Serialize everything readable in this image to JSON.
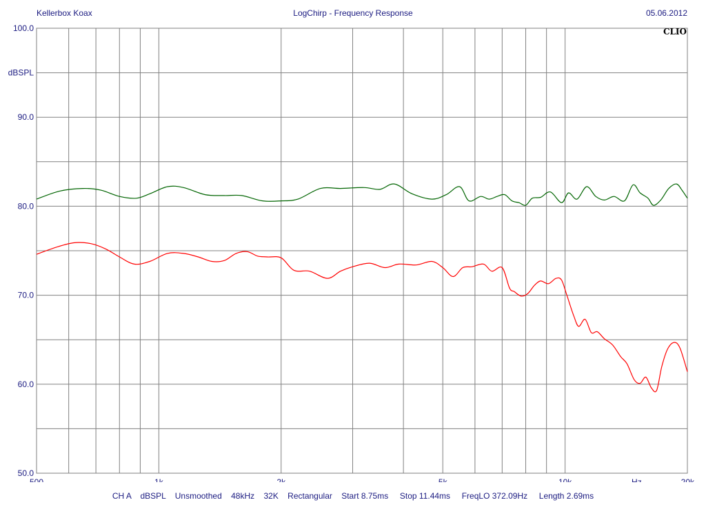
{
  "header": {
    "left": "Kellerbox Koax",
    "center": "LogChirp - Frequency Response",
    "right": "05.06.2012"
  },
  "brand": "CLIO",
  "footer": {
    "text": "CH A    dBSPL    Unsmoothed    48kHz    32K    Rectangular    Start 8.75ms     Stop 11.44ms     FreqLO 372.09Hz     Length 2.69ms"
  },
  "colors": {
    "grid": "#808080",
    "text": "#1a1a80",
    "green": "#006400",
    "red": "#ff0000"
  },
  "chart_data": {
    "type": "line",
    "title": "LogChirp - Frequency Response",
    "xlabel": "Hz",
    "ylabel": "dBSPL",
    "xscale": "log",
    "xlim": [
      500,
      20000
    ],
    "ylim": [
      50,
      100
    ],
    "grid": true,
    "x_ticks": [
      {
        "value": 500,
        "label": "500"
      },
      {
        "value": 1000,
        "label": "1k"
      },
      {
        "value": 2000,
        "label": "2k"
      },
      {
        "value": 5000,
        "label": "5k"
      },
      {
        "value": 10000,
        "label": "10k"
      },
      {
        "value": 20000,
        "label": "20k"
      }
    ],
    "y_ticks": [
      {
        "value": 50,
        "label": "50.0"
      },
      {
        "value": 60,
        "label": "60.0"
      },
      {
        "value": 70,
        "label": "70.0"
      },
      {
        "value": 80,
        "label": "80.0"
      },
      {
        "value": 90,
        "label": "90.0"
      },
      {
        "value": 100,
        "label": "100.0"
      }
    ],
    "series": [
      {
        "color": "#006400",
        "x": [
          500,
          570,
          650,
          720,
          800,
          880,
          950,
          1050,
          1150,
          1300,
          1450,
          1600,
          1800,
          2000,
          2200,
          2500,
          2800,
          3200,
          3500,
          3800,
          4200,
          4700,
          5100,
          5500,
          5800,
          6200,
          6500,
          6800,
          7100,
          7400,
          7700,
          8000,
          8300,
          8700,
          9200,
          9800,
          10200,
          10700,
          11300,
          11900,
          12500,
          13200,
          14000,
          14700,
          15300,
          16000,
          16500,
          17200,
          18000,
          18800,
          19400,
          20000
        ],
        "y": [
          80.8,
          81.7,
          82.0,
          81.8,
          81.1,
          80.9,
          81.4,
          82.2,
          82.1,
          81.3,
          81.2,
          81.2,
          80.6,
          80.6,
          80.8,
          82.0,
          82.0,
          82.1,
          81.9,
          82.5,
          81.4,
          80.8,
          81.3,
          82.2,
          80.6,
          81.1,
          80.8,
          81.1,
          81.3,
          80.6,
          80.4,
          80.1,
          80.9,
          81.0,
          81.6,
          80.4,
          81.5,
          80.8,
          82.2,
          81.1,
          80.7,
          81.1,
          80.6,
          82.4,
          81.5,
          80.9,
          80.1,
          80.7,
          82.0,
          82.5,
          81.8,
          80.9
        ]
      },
      {
        "color": "#ff0000",
        "x": [
          500,
          560,
          620,
          680,
          740,
          800,
          870,
          950,
          1050,
          1150,
          1250,
          1350,
          1450,
          1550,
          1650,
          1750,
          1850,
          2000,
          2150,
          2350,
          2600,
          2800,
          3000,
          3300,
          3600,
          3900,
          4300,
          4700,
          5000,
          5300,
          5600,
          5900,
          6300,
          6600,
          7000,
          7300,
          7500,
          7800,
          8100,
          8400,
          8700,
          9100,
          9500,
          9800,
          10100,
          10500,
          10800,
          11200,
          11600,
          12000,
          12500,
          13100,
          13700,
          14200,
          14800,
          15300,
          15800,
          16300,
          16800,
          17300,
          17900,
          18600,
          19200,
          20000
        ],
        "y": [
          74.6,
          75.4,
          75.9,
          75.8,
          75.2,
          74.3,
          73.5,
          73.8,
          74.7,
          74.7,
          74.3,
          73.8,
          73.9,
          74.7,
          74.9,
          74.4,
          74.3,
          74.2,
          72.8,
          72.7,
          71.9,
          72.7,
          73.2,
          73.6,
          73.1,
          73.5,
          73.4,
          73.8,
          73.1,
          72.1,
          73.1,
          73.2,
          73.5,
          72.7,
          73.1,
          70.8,
          70.4,
          69.9,
          70.2,
          71.1,
          71.6,
          71.3,
          71.9,
          71.7,
          70.0,
          67.7,
          66.5,
          67.3,
          65.8,
          65.9,
          65.1,
          64.4,
          63.1,
          62.3,
          60.5,
          60.1,
          60.8,
          59.6,
          59.3,
          62.0,
          64.0,
          64.7,
          64.0,
          61.4
        ]
      }
    ]
  }
}
